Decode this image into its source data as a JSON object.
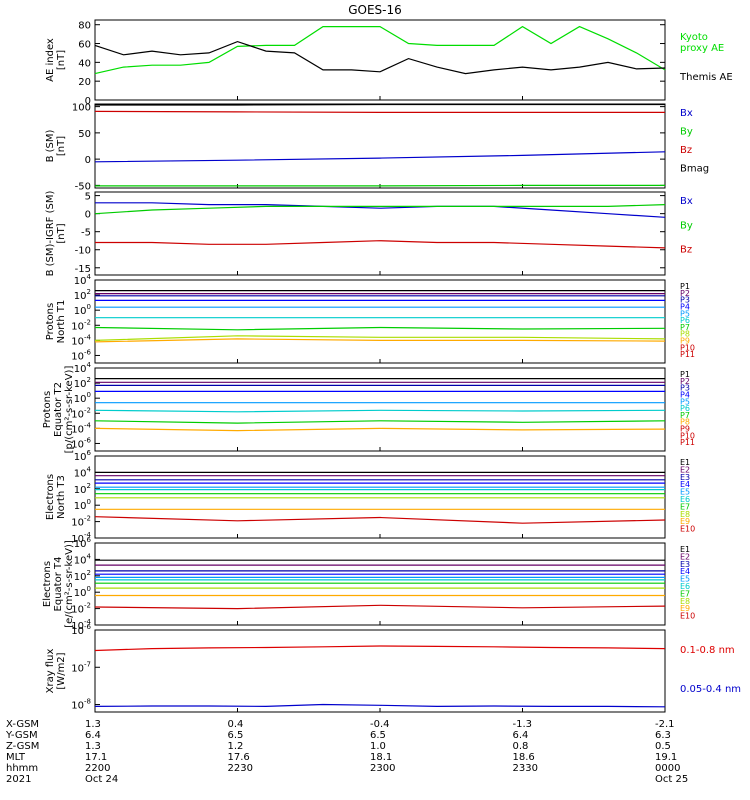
{
  "title": "GOES-16",
  "orbit": {
    "labels": [
      "X-GSM",
      "Y-GSM",
      "Z-GSM",
      "MLT",
      "hhmm",
      "2021"
    ],
    "columns": [
      {
        "values": [
          "1.3",
          "6.4",
          "1.3",
          "17.1",
          "2200",
          "Oct 24"
        ]
      },
      {
        "values": [
          "0.4",
          "6.5",
          "1.2",
          "17.6",
          "2230",
          ""
        ]
      },
      {
        "values": [
          "-0.4",
          "6.5",
          "1.0",
          "18.1",
          "2300",
          ""
        ]
      },
      {
        "values": [
          "-1.3",
          "6.4",
          "0.8",
          "18.6",
          "2330",
          ""
        ]
      },
      {
        "values": [
          "-2.1",
          "6.3",
          "0.5",
          "19.1",
          "0000",
          "Oct 25"
        ]
      }
    ]
  },
  "chart_data": [
    {
      "type": "line",
      "panel": "ae",
      "ylabel": [
        "AE index",
        "[nT]"
      ],
      "ylim": [
        0,
        85
      ],
      "yticks": [
        0,
        20,
        40,
        60,
        80
      ],
      "ytick_labels": [
        "0",
        "20",
        "40",
        "60",
        "80"
      ],
      "x": [
        0,
        0.05,
        0.1,
        0.15,
        0.2,
        0.25,
        0.3,
        0.35,
        0.4,
        0.45,
        0.5,
        0.55,
        0.6,
        0.65,
        0.7,
        0.75,
        0.8,
        0.85,
        0.9,
        0.95,
        1.0
      ],
      "series": [
        {
          "name": "Kyoto proxy AE",
          "color": "#00dd00",
          "label_lines": [
            "Kyoto",
            "proxy AE"
          ],
          "values": [
            28,
            35,
            37,
            37,
            40,
            57,
            58,
            58,
            78,
            78,
            78,
            60,
            58,
            58,
            58,
            78,
            60,
            78,
            65,
            50,
            32
          ]
        },
        {
          "name": "Themis AE",
          "color": "#000000",
          "label_lines": [
            "Themis AE"
          ],
          "values": [
            58,
            48,
            52,
            48,
            50,
            62,
            52,
            50,
            32,
            32,
            30,
            44,
            35,
            28,
            32,
            35,
            32,
            35,
            40,
            33,
            34
          ]
        }
      ]
    },
    {
      "type": "line",
      "panel": "bsm",
      "ylabel": [
        "B (SM)",
        "[nT]"
      ],
      "ylim": [
        -55,
        105
      ],
      "yticks": [
        -50,
        0,
        50,
        100
      ],
      "ytick_labels": [
        "-50",
        "0",
        "50",
        "100"
      ],
      "x": [
        0,
        0.25,
        0.5,
        0.75,
        1.0
      ],
      "series": [
        {
          "name": "Bx",
          "color": "#0000cc",
          "values": [
            -5,
            -2,
            2,
            7,
            14
          ]
        },
        {
          "name": "By",
          "color": "#00cc00",
          "values": [
            -51,
            -51,
            -51,
            -50,
            -50
          ]
        },
        {
          "name": "Bz",
          "color": "#cc0000",
          "values": [
            91,
            90,
            89,
            89,
            89
          ]
        },
        {
          "name": "Bmag",
          "color": "#000000",
          "values": [
            103,
            103,
            104,
            104,
            104
          ]
        }
      ]
    },
    {
      "type": "line",
      "panel": "bigrf",
      "ylabel": [
        "B (SM)-IGRF (SM)",
        "[nT]"
      ],
      "ylim": [
        -17,
        6
      ],
      "yticks": [
        -15,
        -10,
        -5,
        0,
        5
      ],
      "ytick_labels": [
        "-15",
        "-10",
        "-5",
        "0",
        "5"
      ],
      "x": [
        0,
        0.1,
        0.2,
        0.3,
        0.4,
        0.5,
        0.6,
        0.7,
        0.8,
        0.9,
        1.0
      ],
      "series": [
        {
          "name": "Bx",
          "color": "#0000cc",
          "values": [
            3,
            3,
            2.5,
            2.5,
            2,
            1.5,
            2,
            2,
            1,
            0,
            -1
          ]
        },
        {
          "name": "By",
          "color": "#00cc00",
          "values": [
            0,
            1,
            1.5,
            2,
            2,
            2,
            2,
            2,
            2,
            2,
            2.5
          ]
        },
        {
          "name": "Bz",
          "color": "#cc0000",
          "values": [
            -8,
            -8,
            -8.5,
            -8.5,
            -8,
            -7.5,
            -8,
            -8,
            -8.5,
            -9,
            -9.5
          ]
        }
      ]
    },
    {
      "type": "line",
      "panel": "protons_t1",
      "ylabel": [
        "Protons",
        "North T1"
      ],
      "log": true,
      "ylim_log10": [
        -7,
        4
      ],
      "ytick_labels": [
        "10^4",
        "10^2",
        "10^0",
        "10^-2",
        "10^-4",
        "10^-6"
      ],
      "legend": [
        "P1",
        "P2",
        "P3",
        "P4",
        "P5",
        "P6",
        "P7",
        "P8",
        "P9",
        "P10",
        "P11"
      ],
      "x": [
        0,
        0.25,
        0.5,
        0.75,
        1.0
      ],
      "series": [
        {
          "name": "P1",
          "color": "#000000",
          "values": [
            2.6,
            2.6,
            2.6,
            2.6,
            2.6
          ]
        },
        {
          "name": "P2",
          "color": "#660066",
          "values": [
            2.2,
            2.2,
            2.2,
            2.2,
            2.2
          ]
        },
        {
          "name": "P3",
          "color": "#0000aa",
          "values": [
            1.9,
            1.9,
            1.9,
            1.9,
            1.9
          ]
        },
        {
          "name": "P4",
          "color": "#0000ff",
          "values": [
            1.3,
            1.3,
            1.3,
            1.3,
            1.3
          ]
        },
        {
          "name": "P5",
          "color": "#0099ff",
          "values": [
            0.4,
            0.4,
            0.4,
            0.4,
            0.4
          ]
        },
        {
          "name": "P6",
          "color": "#00cccc",
          "values": [
            -1.0,
            -1.0,
            -1.0,
            -1.0,
            -1.0
          ]
        },
        {
          "name": "P7",
          "color": "#00cc00",
          "values": [
            -2.3,
            -2.6,
            -2.3,
            -2.5,
            -2.4
          ]
        },
        {
          "name": "P8",
          "color": "#aadd00",
          "values": [
            -4.0,
            -3.4,
            -3.6,
            -3.6,
            -3.8
          ]
        },
        {
          "name": "P9",
          "color": "#ffaa00",
          "values": [
            -4.2,
            -3.8,
            -4.0,
            -4.0,
            -4.1
          ]
        }
      ]
    },
    {
      "type": "line",
      "panel": "protons_t2",
      "ylabel": [
        "Protons",
        "Equator T2",
        "[p/(cm²-s-sr-keV)]"
      ],
      "log": true,
      "ylim_log10": [
        -7,
        4
      ],
      "ytick_labels": [
        "10^4",
        "10^2",
        "10^0",
        "10^-2",
        "10^-4",
        "10^-6"
      ],
      "legend": [
        "P1",
        "P2",
        "P3",
        "P4",
        "P5",
        "P6",
        "P7",
        "P8",
        "P9",
        "P10",
        "P11"
      ],
      "x": [
        0,
        0.25,
        0.5,
        0.75,
        1.0
      ],
      "series": [
        {
          "name": "P1",
          "color": "#000000",
          "values": [
            2.6,
            2.6,
            2.6,
            2.6,
            2.6
          ]
        },
        {
          "name": "P2",
          "color": "#660066",
          "values": [
            2.1,
            2.1,
            2.1,
            2.1,
            2.1
          ]
        },
        {
          "name": "P3",
          "color": "#0000aa",
          "values": [
            1.7,
            1.7,
            1.7,
            1.7,
            1.7
          ]
        },
        {
          "name": "P4",
          "color": "#0000ff",
          "values": [
            0.9,
            0.9,
            0.9,
            0.9,
            0.9
          ]
        },
        {
          "name": "P5",
          "color": "#0099ff",
          "values": [
            -0.6,
            -0.6,
            -0.6,
            -0.6,
            -0.6
          ]
        },
        {
          "name": "P6",
          "color": "#00cccc",
          "values": [
            -1.6,
            -1.8,
            -1.6,
            -1.7,
            -1.6
          ]
        },
        {
          "name": "P7",
          "color": "#00cc00",
          "values": [
            -3.0,
            -3.3,
            -3.0,
            -3.2,
            -3.0
          ]
        },
        {
          "name": "P8",
          "color": "#ffaa00",
          "values": [
            -4.0,
            -4.3,
            -4.0,
            -4.2,
            -4.1
          ]
        }
      ]
    },
    {
      "type": "line",
      "panel": "electrons_t3",
      "ylabel": [
        "Electrons",
        "North T3"
      ],
      "log": true,
      "ylim_log10": [
        -4,
        6
      ],
      "ytick_labels": [
        "10^6",
        "10^4",
        "10^2",
        "10^0",
        "10^-2",
        "10^-4"
      ],
      "legend": [
        "E1",
        "E2",
        "E3",
        "E4",
        "E5",
        "E6",
        "E7",
        "E8",
        "E9",
        "E10"
      ],
      "x": [
        0,
        0.25,
        0.5,
        0.75,
        1.0
      ],
      "series": [
        {
          "name": "E1",
          "color": "#000000",
          "values": [
            4.0,
            4.0,
            4.0,
            4.0,
            4.0
          ]
        },
        {
          "name": "E2",
          "color": "#660066",
          "values": [
            3.6,
            3.6,
            3.6,
            3.6,
            3.6
          ]
        },
        {
          "name": "E3",
          "color": "#0000aa",
          "values": [
            3.1,
            3.1,
            3.1,
            3.1,
            3.1
          ]
        },
        {
          "name": "E4",
          "color": "#0000ff",
          "values": [
            2.7,
            2.7,
            2.7,
            2.7,
            2.7
          ]
        },
        {
          "name": "E5",
          "color": "#0099ff",
          "values": [
            2.2,
            2.2,
            2.2,
            2.2,
            2.2
          ]
        },
        {
          "name": "E6",
          "color": "#00cccc",
          "values": [
            1.9,
            1.9,
            1.9,
            1.9,
            1.9
          ]
        },
        {
          "name": "E7",
          "color": "#00cc00",
          "values": [
            1.4,
            1.4,
            1.4,
            1.4,
            1.4
          ]
        },
        {
          "name": "E8",
          "color": "#aadd00",
          "values": [
            0.9,
            0.9,
            0.9,
            0.9,
            0.9
          ]
        },
        {
          "name": "E9",
          "color": "#ffaa00",
          "values": [
            -0.5,
            -0.5,
            -0.5,
            -0.5,
            -0.5
          ]
        },
        {
          "name": "E10",
          "color": "#cc0000",
          "values": [
            -1.4,
            -1.9,
            -1.5,
            -2.2,
            -1.8
          ]
        }
      ]
    },
    {
      "type": "line",
      "panel": "electrons_t4",
      "ylabel": [
        "Electrons",
        "Equator T4",
        "[e/(cm²-s-sr-keV)]"
      ],
      "log": true,
      "ylim_log10": [
        -4,
        6
      ],
      "ytick_labels": [
        "10^6",
        "10^4",
        "10^2",
        "10^0",
        "10^-2",
        "10^-4"
      ],
      "legend": [
        "E1",
        "E2",
        "E3",
        "E4",
        "E5",
        "E6",
        "E7",
        "E8",
        "E9",
        "E10"
      ],
      "x": [
        0,
        0.25,
        0.5,
        0.75,
        1.0
      ],
      "series": [
        {
          "name": "E1",
          "color": "#000000",
          "values": [
            3.9,
            3.9,
            3.9,
            3.9,
            3.9
          ]
        },
        {
          "name": "E2",
          "color": "#660066",
          "values": [
            3.3,
            3.3,
            3.3,
            3.3,
            3.3
          ]
        },
        {
          "name": "E3",
          "color": "#0000aa",
          "values": [
            2.6,
            2.6,
            2.6,
            2.6,
            2.6
          ]
        },
        {
          "name": "E4",
          "color": "#0000ff",
          "values": [
            2.2,
            2.2,
            2.2,
            2.2,
            2.2
          ]
        },
        {
          "name": "E5",
          "color": "#0099ff",
          "values": [
            1.8,
            1.8,
            1.8,
            1.8,
            1.8
          ]
        },
        {
          "name": "E6",
          "color": "#00cccc",
          "values": [
            1.5,
            1.5,
            1.5,
            1.5,
            1.5
          ]
        },
        {
          "name": "E7",
          "color": "#00cc00",
          "values": [
            1.1,
            1.1,
            1.1,
            1.1,
            1.1
          ]
        },
        {
          "name": "E8",
          "color": "#aadd00",
          "values": [
            0.5,
            0.5,
            0.5,
            0.5,
            0.5
          ]
        },
        {
          "name": "E9",
          "color": "#ffaa00",
          "values": [
            -0.4,
            -0.4,
            -0.4,
            -0.4,
            -0.4
          ]
        },
        {
          "name": "E10",
          "color": "#cc0000",
          "values": [
            -1.8,
            -2.0,
            -1.6,
            -1.9,
            -1.7
          ]
        }
      ]
    },
    {
      "type": "line",
      "panel": "xray",
      "ylabel": [
        "Xray flux",
        "[W/m2]"
      ],
      "log": true,
      "ylim_log10": [
        -8.2,
        -6
      ],
      "ytick_labels": [
        "10^-6",
        "10^-7",
        "10^-8"
      ],
      "x": [
        0,
        0.1,
        0.2,
        0.3,
        0.4,
        0.5,
        0.6,
        0.7,
        0.8,
        0.9,
        1.0
      ],
      "series": [
        {
          "name": "0.1-0.8 nm",
          "color": "#dd0000",
          "values": [
            -6.55,
            -6.5,
            -6.48,
            -6.47,
            -6.45,
            -6.43,
            -6.44,
            -6.45,
            -6.47,
            -6.48,
            -6.5
          ]
        },
        {
          "name": "0.05-0.4 nm",
          "color": "#0000cc",
          "values": [
            -8.05,
            -8.04,
            -8.04,
            -8.05,
            -8.0,
            -8.02,
            -8.05,
            -8.04,
            -8.05,
            -8.05,
            -8.06
          ]
        }
      ]
    }
  ]
}
